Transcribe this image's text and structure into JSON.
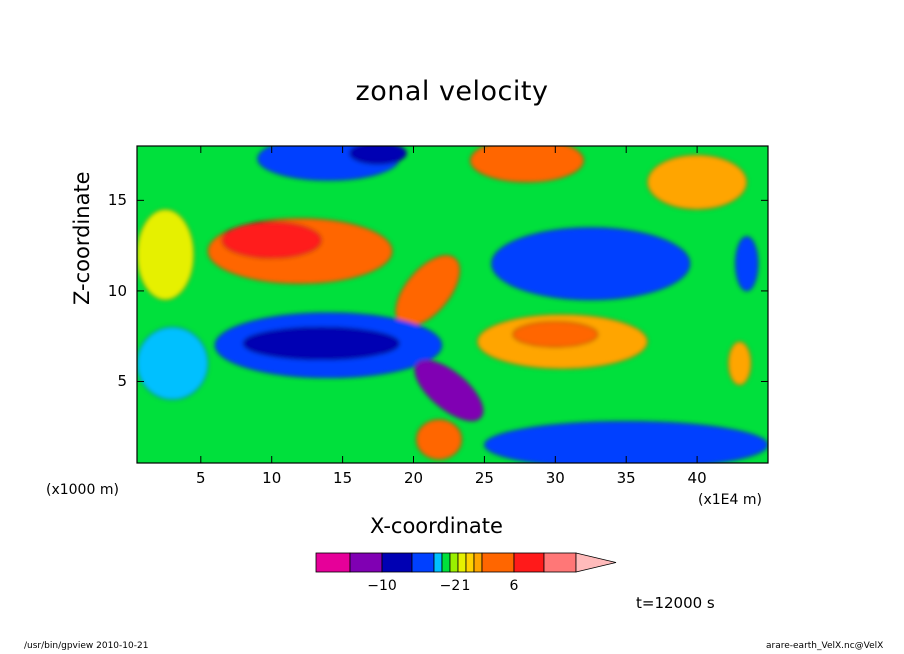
{
  "chart_data": {
    "type": "heatmap",
    "title": "zonal velocity",
    "xlabel": "X-coordinate",
    "ylabel": "Z-coordinate",
    "x_unit": "(x1E4 m)",
    "y_unit": "(x1000 m)",
    "x_range": [
      0.5,
      45
    ],
    "y_range": [
      0.5,
      18
    ],
    "x_ticks": [
      5,
      10,
      15,
      20,
      25,
      30,
      35,
      40
    ],
    "y_ticks": [
      5,
      10,
      15
    ],
    "colorbar": {
      "colors": [
        "#e60099",
        "#8000b3",
        "#0000b3",
        "#0040ff",
        "#00c0ff",
        "#00e03c",
        "#99f000",
        "#e6f000",
        "#ffd200",
        "#ffa500",
        "#ff6600",
        "#ff1a1a",
        "#ff7777",
        "#ffbbbb"
      ],
      "tick_labels": [
        {
          "label": "−10",
          "index": 1
        },
        {
          "label": "−2",
          "index": 5
        },
        {
          "label": "1",
          "index": 7
        },
        {
          "label": "6",
          "index": 10
        }
      ]
    },
    "annotation": "t=12000 s",
    "field": [
      {
        "name": "upper-blue-left",
        "x": 14,
        "y": 17.3,
        "rx": 5,
        "ry": 1.2,
        "level": 3
      },
      {
        "name": "upper-blue-core",
        "x": 17.5,
        "y": 17.6,
        "rx": 2,
        "ry": 0.6,
        "level": 2
      },
      {
        "name": "upper-orange-right",
        "x": 28,
        "y": 17.2,
        "rx": 4,
        "ry": 1.2,
        "level": 10
      },
      {
        "name": "upper-right-orange",
        "x": 40,
        "y": 16.0,
        "rx": 3.5,
        "ry": 1.5,
        "level": 9
      },
      {
        "name": "upper-layer-orange",
        "x": 12,
        "y": 12.2,
        "rx": 6.5,
        "ry": 1.8,
        "level": 10
      },
      {
        "name": "upper-layer-core",
        "x": 10,
        "y": 12.8,
        "rx": 3.5,
        "ry": 1.0,
        "level": 11
      },
      {
        "name": "tilted-jet",
        "x": 21,
        "y": 10.0,
        "rx": 3,
        "ry": 1.2,
        "level": 10
      },
      {
        "name": "mid-blue-right",
        "x": 32.5,
        "y": 11.5,
        "rx": 7,
        "ry": 2.0,
        "level": 3
      },
      {
        "name": "mid-orange-right",
        "x": 30.5,
        "y": 7.2,
        "rx": 6,
        "ry": 1.5,
        "level": 9
      },
      {
        "name": "mid-orange-core",
        "x": 30,
        "y": 7.6,
        "rx": 3,
        "ry": 0.7,
        "level": 10
      },
      {
        "name": "lower-blue-layer",
        "x": 14,
        "y": 7.0,
        "rx": 8,
        "ry": 1.8,
        "level": 3
      },
      {
        "name": "lower-blue-core",
        "x": 13.5,
        "y": 7.1,
        "rx": 5.5,
        "ry": 0.9,
        "level": 2
      },
      {
        "name": "descending-purple",
        "x": 22.5,
        "y": 4.5,
        "rx": 1.3,
        "ry": 2.3,
        "level": 1
      },
      {
        "name": "surface-orange",
        "x": 21.8,
        "y": 1.8,
        "rx": 1.6,
        "ry": 1.1,
        "level": 10
      },
      {
        "name": "surface-blue-right",
        "x": 35,
        "y": 1.5,
        "rx": 10,
        "ry": 1.3,
        "level": 3
      },
      {
        "name": "left-cyan",
        "x": 3,
        "y": 6.0,
        "rx": 2.5,
        "ry": 2.0,
        "level": 4
      },
      {
        "name": "left-yellow",
        "x": 2.5,
        "y": 12.0,
        "rx": 2.0,
        "ry": 2.5,
        "level": 7
      },
      {
        "name": "right-blue-small",
        "x": 43.5,
        "y": 11.5,
        "rx": 0.8,
        "ry": 1.5,
        "level": 3
      },
      {
        "name": "right-orange-small",
        "x": 43,
        "y": 6.0,
        "rx": 0.8,
        "ry": 1.2,
        "level": 9
      }
    ]
  },
  "footer": {
    "left": "/usr/bin/gpview   2010-10-21",
    "right": "arare-earth_VelX.nc@VelX"
  }
}
